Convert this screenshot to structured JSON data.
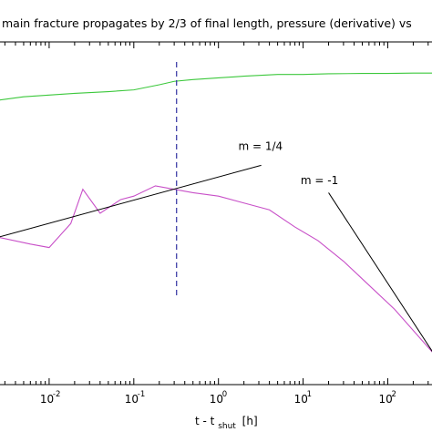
{
  "chart_data": {
    "type": "line",
    "title": "main fracture propagates by 2/3 of final length, pressure (derivative) vs",
    "xlabel": {
      "main": "t - t",
      "subscript": "shut",
      "unit": "[h]"
    },
    "x_scale": "log",
    "xlim": [
      0.0025,
      350
    ],
    "ylim": [
      0,
      1
    ],
    "y_axis_ticks_visible": false,
    "x_ticks": [
      {
        "value": 0.01,
        "base": "10",
        "exp": "-2"
      },
      {
        "value": 0.1,
        "base": "10",
        "exp": "-1"
      },
      {
        "value": 1,
        "base": "10",
        "exp": "0"
      },
      {
        "value": 10,
        "base": "10",
        "exp": "1"
      },
      {
        "value": 100,
        "base": "10",
        "exp": "2"
      }
    ],
    "grid": false,
    "series": [
      {
        "color": "#3cc83c",
        "x": [
          0.0025,
          0.005,
          0.01,
          0.02,
          0.05,
          0.1,
          0.2,
          0.3,
          0.5,
          1,
          2,
          5,
          10,
          20,
          50,
          100,
          200,
          350
        ],
        "y": [
          0.83,
          0.84,
          0.845,
          0.85,
          0.855,
          0.86,
          0.875,
          0.885,
          0.89,
          0.895,
          0.9,
          0.905,
          0.905,
          0.907,
          0.908,
          0.908,
          0.909,
          0.909
        ]
      },
      {
        "color": "#c850c8",
        "x": [
          0.0025,
          0.006,
          0.01,
          0.018,
          0.025,
          0.04,
          0.07,
          0.1,
          0.18,
          0.3,
          0.5,
          1,
          2,
          4,
          8,
          15,
          30,
          60,
          120,
          350
        ],
        "y": [
          0.43,
          0.41,
          0.4,
          0.47,
          0.57,
          0.5,
          0.54,
          0.55,
          0.58,
          0.57,
          0.56,
          0.55,
          0.53,
          0.51,
          0.46,
          0.42,
          0.36,
          0.29,
          0.22,
          0.09
        ]
      }
    ],
    "annotations": [
      {
        "text": "m = 1/4",
        "at_x": 2.2,
        "at_y": 0.685
      },
      {
        "text": "m = -1",
        "at_x": 12,
        "at_y": 0.585
      }
    ],
    "reference_lines": [
      {
        "slope_label": "m = 1/4",
        "x": [
          0.0025,
          3.2
        ],
        "y": [
          0.43,
          0.64
        ],
        "color": "#000000"
      },
      {
        "slope_label": "m = -1",
        "x": [
          20,
          350
        ],
        "y": [
          0.56,
          0.09
        ],
        "color": "#000000"
      }
    ],
    "vertical_marker": {
      "x": 0.32,
      "color": "#3030a0",
      "style": "dashed"
    }
  }
}
